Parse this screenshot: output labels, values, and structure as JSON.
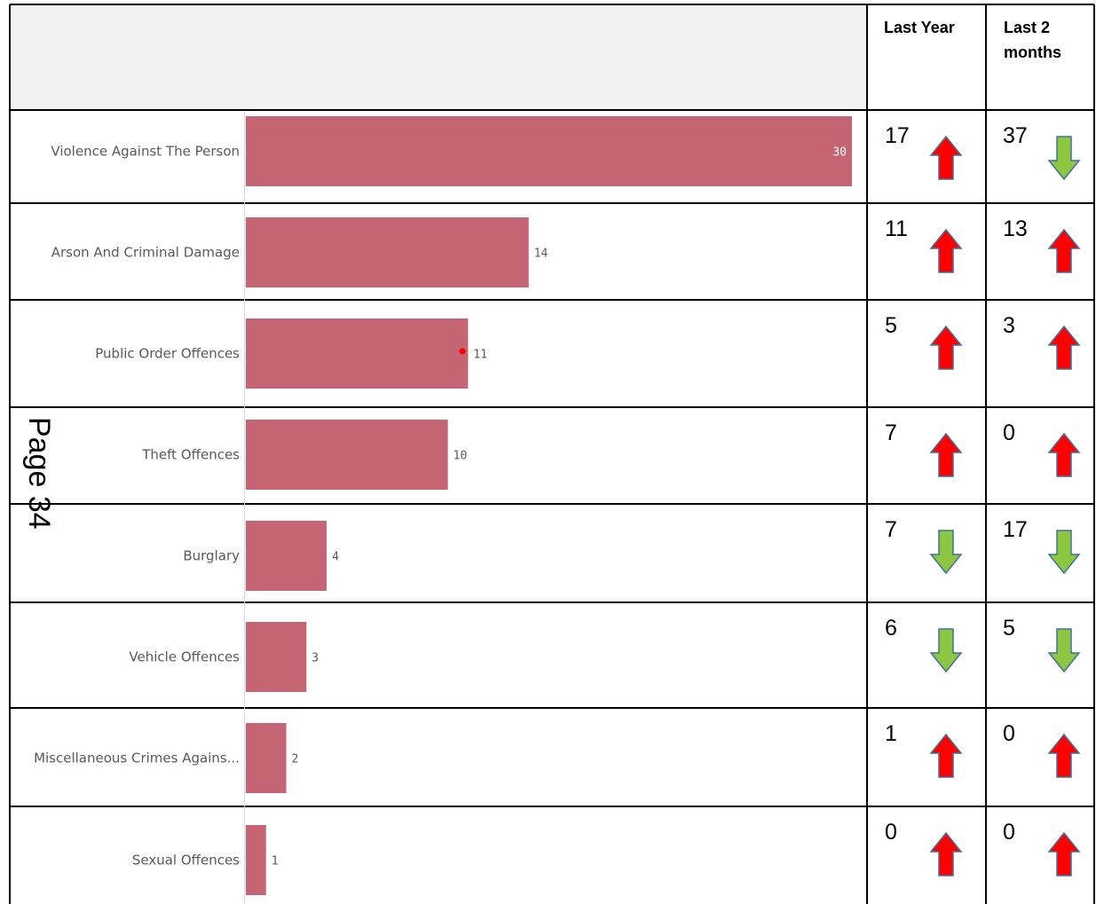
{
  "page_label": "Page 34",
  "table": {
    "col_last_year_lines": [
      "Last Year"
    ],
    "col_last_2_months_lines": [
      "Last 2",
      "months"
    ]
  },
  "colors": {
    "bar": "#c56574",
    "arrow_up": "#ff0000",
    "arrow_down": "#8dc641",
    "arrow_outline": "#41719c",
    "header_bg": "#f2f2f2"
  },
  "chart_data": {
    "type": "bar",
    "orientation": "horizontal",
    "xlim": [
      0,
      30
    ],
    "grid": false,
    "categories": [
      "Violence Against The Person",
      "Arson And Criminal Damage",
      "Public Order Offences",
      "Theft Offences",
      "Burglary",
      "Vehicle Offences",
      "Miscellaneous Crimes Agains...",
      "Sexual Offences"
    ],
    "values": [
      30,
      14,
      11,
      10,
      4,
      3,
      2,
      1
    ]
  },
  "rows": [
    {
      "last_year": "17",
      "last_year_dir": "up",
      "last_2_months": "37",
      "last_2_months_dir": "down"
    },
    {
      "last_year": "11",
      "last_year_dir": "up",
      "last_2_months": "13",
      "last_2_months_dir": "up"
    },
    {
      "last_year": "5",
      "last_year_dir": "up",
      "last_2_months": "3",
      "last_2_months_dir": "up"
    },
    {
      "last_year": "7",
      "last_year_dir": "up",
      "last_2_months": "0",
      "last_2_months_dir": "up"
    },
    {
      "last_year": "7",
      "last_year_dir": "down",
      "last_2_months": "17",
      "last_2_months_dir": "down"
    },
    {
      "last_year": "6",
      "last_year_dir": "down",
      "last_2_months": "5",
      "last_2_months_dir": "down"
    },
    {
      "last_year": "1",
      "last_year_dir": "up",
      "last_2_months": "0",
      "last_2_months_dir": "up"
    },
    {
      "last_year": "0",
      "last_year_dir": "up",
      "last_2_months": "0",
      "last_2_months_dir": "up"
    }
  ]
}
